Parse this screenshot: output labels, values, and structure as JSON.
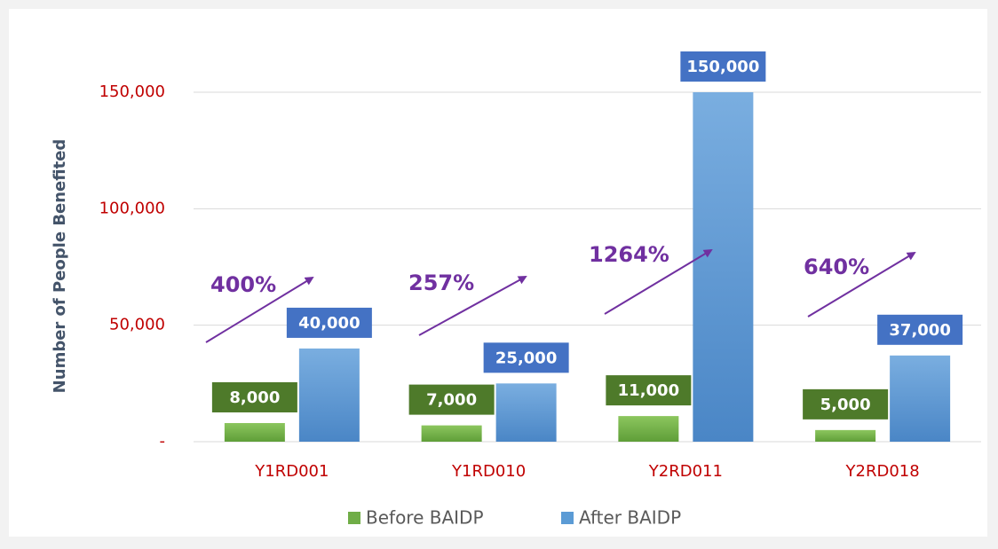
{
  "chart_data": {
    "type": "bar",
    "y_label": "Number of People Benefited",
    "categories": [
      "Y1RD001",
      "Y1RD010",
      "Y2RD011",
      "Y2RD018"
    ],
    "series": [
      {
        "name": "Before BAIDP",
        "color": "#70ad47",
        "label_color": "#4e7a2a",
        "values": [
          8000,
          7000,
          11000,
          5000
        ],
        "value_labels": [
          "8,000",
          "7,000",
          "11,000",
          "5,000"
        ]
      },
      {
        "name": "After BAIDP",
        "color": "#5b9bd5",
        "label_color": "#4472c4",
        "values": [
          40000,
          25000,
          150000,
          37000
        ],
        "value_labels": [
          "40,000",
          "25,000",
          "150,000",
          "37,000"
        ]
      }
    ],
    "annotations": [
      "400%",
      "257%",
      "1264%",
      "640%"
    ],
    "annotation_color": "#7030a0",
    "ylim": [
      0,
      150000
    ],
    "yticks": [
      {
        "value": 0,
        "label": "-"
      },
      {
        "value": 50000,
        "label": "50,000"
      },
      {
        "value": 100000,
        "label": "100,000"
      },
      {
        "value": 150000,
        "label": "150,000"
      }
    ],
    "grid": true
  }
}
